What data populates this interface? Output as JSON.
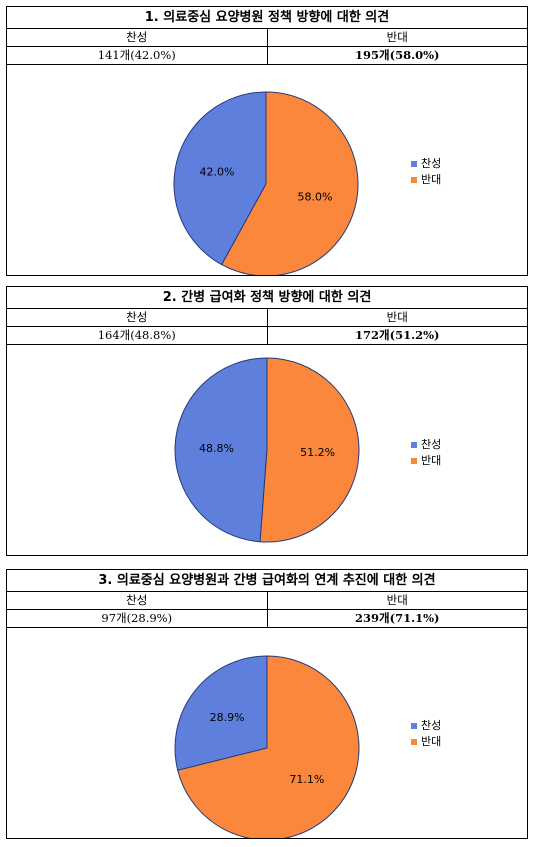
{
  "colors": {
    "agree": "#5f7fdd",
    "oppose": "#fb873d"
  },
  "legend": {
    "agree": "찬성",
    "oppose": "반대"
  },
  "sections": [
    {
      "title": "1. 의료중심 요양병원 정책 방향에 대한 의견",
      "header": {
        "agree": "찬성",
        "oppose": "반대"
      },
      "counts": {
        "agree": "141개(42.0%)",
        "oppose": "195개(58.0%)"
      }
    },
    {
      "title": "2. 간병 급여화 정책 방향에 대한 의견",
      "header": {
        "agree": "찬성",
        "oppose": "반대"
      },
      "counts": {
        "agree": "164개(48.8%)",
        "oppose": "172개(51.2%)"
      }
    },
    {
      "title": "3. 의료중심 요양병원과 간병 급여화의 연계 추진에 대한 의견",
      "header": {
        "agree": "찬성",
        "oppose": "반대"
      },
      "counts": {
        "agree": "97개(28.9%)",
        "oppose": "239개(71.1%)"
      }
    }
  ],
  "chart_data": [
    {
      "type": "pie",
      "categories": [
        "찬성",
        "반대"
      ],
      "values": [
        42.0,
        58.0
      ],
      "labels": [
        "42.0%",
        "58.0%"
      ],
      "legend": "right"
    },
    {
      "type": "pie",
      "categories": [
        "찬성",
        "반대"
      ],
      "values": [
        48.8,
        51.2
      ],
      "labels": [
        "48.8%",
        "51.2%"
      ],
      "legend": "right"
    },
    {
      "type": "pie",
      "categories": [
        "찬성",
        "반대"
      ],
      "values": [
        28.9,
        71.1
      ],
      "labels": [
        "28.9%",
        "71.1%"
      ],
      "legend": "right"
    }
  ]
}
